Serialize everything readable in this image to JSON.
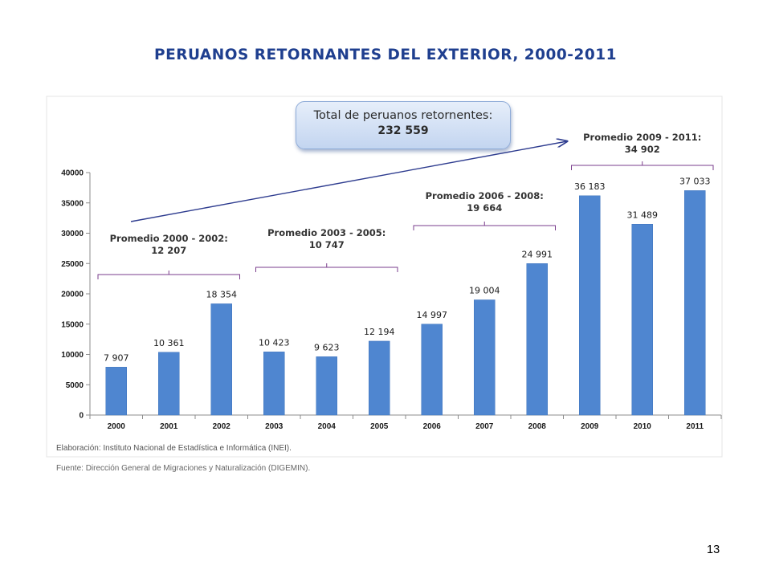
{
  "slide": {
    "title": "PERUANOS RETORNANTES DEL EXTERIOR, 2000-2011",
    "page_number": "13"
  },
  "total_box": {
    "label": "Total de peruanos retornentes:",
    "value": "232 559"
  },
  "notes": {
    "elaboracion": "Elaboración: Instituto Nacional de Estadística e Informática (INEI).",
    "fuente": "Fuente: Dirección General de Migraciones y Naturalización (DIGEMIN)."
  },
  "colors": {
    "bar": "#4f86d0",
    "bracket": "#7a3d8c",
    "arrow": "#2e3c8f",
    "title": "#1f3f8f"
  },
  "chart_data": {
    "type": "bar",
    "categories": [
      "2000",
      "2001",
      "2002",
      "2003",
      "2004",
      "2005",
      "2006",
      "2007",
      "2008",
      "2009",
      "2010",
      "2011"
    ],
    "values": [
      7907,
      10361,
      18354,
      10423,
      9623,
      12194,
      14997,
      19004,
      24991,
      36183,
      31489,
      37033
    ],
    "value_labels": [
      "7 907",
      "10 361",
      "18 354",
      "10 423",
      "9 623",
      "12 194",
      "14 997",
      "19 004",
      "24 991",
      "36 183",
      "31 489",
      "37 033"
    ],
    "ylim": [
      0,
      40000
    ],
    "yticks": [
      0,
      5000,
      10000,
      15000,
      20000,
      25000,
      30000,
      35000,
      40000
    ],
    "grid": false,
    "annotations": [
      {
        "label": "Promedio 2000 - 2002:",
        "value": "12 207",
        "from": "2000",
        "to": "2002"
      },
      {
        "label": "Promedio 2003 - 2005:",
        "value": "10 747",
        "from": "2003",
        "to": "2005"
      },
      {
        "label": "Promedio 2006 - 2008:",
        "value": "19 664",
        "from": "2006",
        "to": "2008"
      },
      {
        "label": "Promedio 2009 - 2011:",
        "value": "34 902",
        "from": "2009",
        "to": "2011"
      }
    ]
  }
}
